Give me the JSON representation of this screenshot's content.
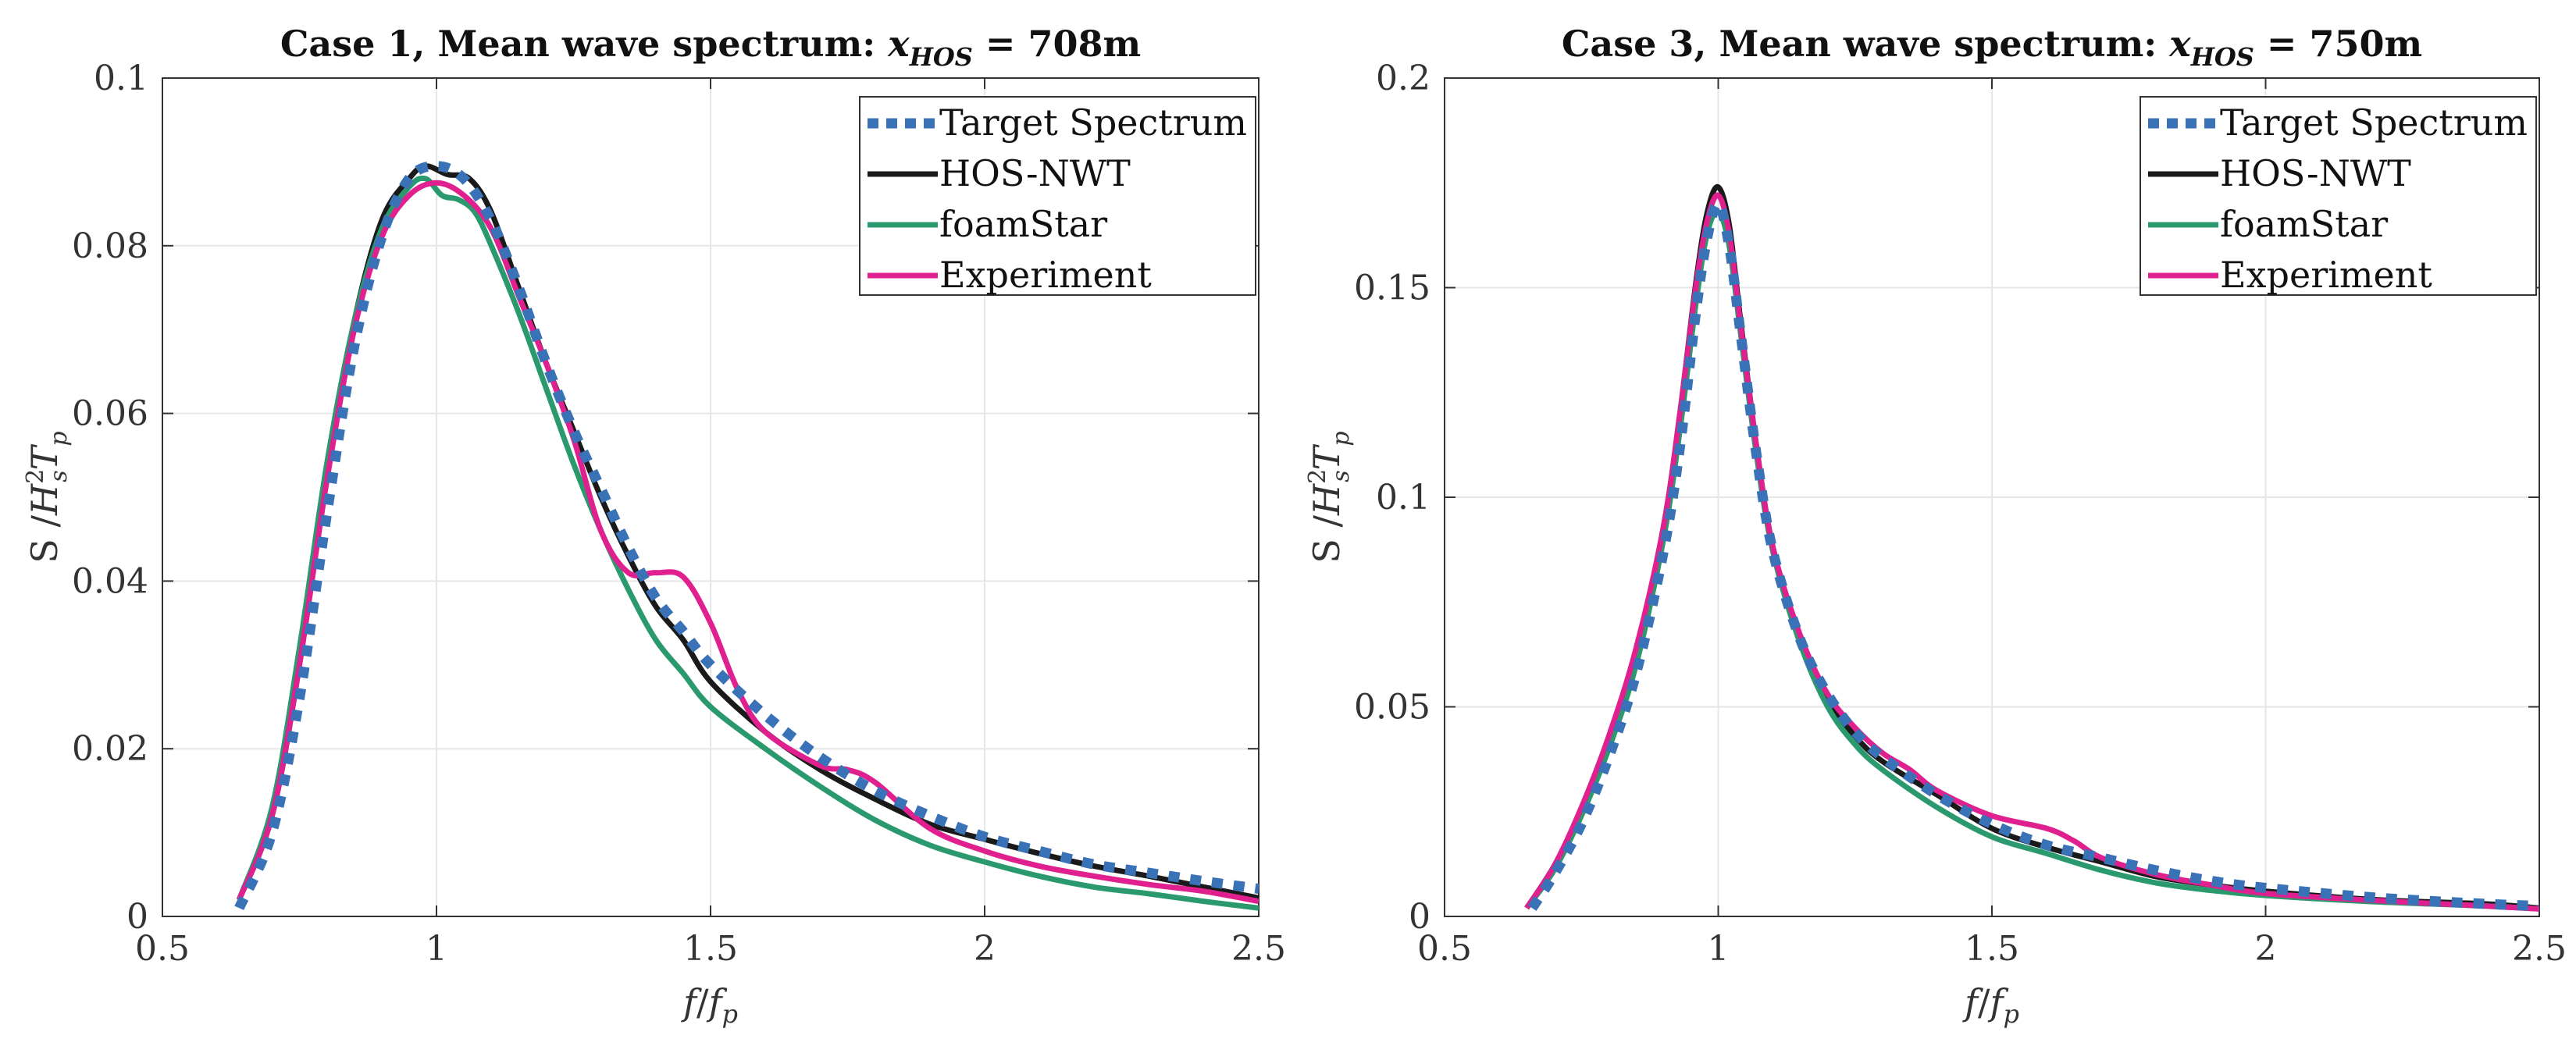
{
  "chart_data": [
    {
      "type": "line",
      "title": "Case 1, Mean wave spectrum: x_HOS = 708m",
      "title_main": "Case 1, Mean wave spectrum: ",
      "title_var": "x",
      "title_sub": "HOS",
      "title_value": " = 708m",
      "xlabel_num": "f",
      "xlabel_den": "f",
      "xlabel_sub": "p",
      "ylabel": "S /H²ₛTₚ",
      "ylabel_prefix": "S /",
      "ylabel_H": "H",
      "ylabel_sup": "2",
      "ylabel_s": "s",
      "ylabel_T": "T",
      "ylabel_p": "p",
      "xlim": [
        0.5,
        2.5
      ],
      "ylim": [
        0,
        0.1
      ],
      "xticks": [
        0.5,
        1,
        1.5,
        2,
        2.5
      ],
      "xtick_labels": [
        "0.5",
        "1",
        "1.5",
        "2",
        "2.5"
      ],
      "yticks": [
        0,
        0.02,
        0.04,
        0.06,
        0.08,
        0.1
      ],
      "ytick_labels": [
        "0",
        "0.02",
        "0.04",
        "0.06",
        "0.08",
        "0.1"
      ],
      "grid": true,
      "legend_position": "top-right",
      "series": [
        {
          "name": "Target Spectrum",
          "color": "#3a72b8",
          "style": "dotted",
          "x": [
            0.64,
            0.7,
            0.75,
            0.8,
            0.85,
            0.9,
            0.95,
            1.0,
            1.05,
            1.1,
            1.15,
            1.2,
            1.25,
            1.3,
            1.35,
            1.4,
            1.45,
            1.5,
            1.6,
            1.7,
            1.8,
            1.9,
            2.0,
            2.1,
            2.2,
            2.3,
            2.4,
            2.5
          ],
          "y": [
            0.001,
            0.01,
            0.026,
            0.048,
            0.068,
            0.081,
            0.088,
            0.0895,
            0.088,
            0.083,
            0.075,
            0.066,
            0.058,
            0.051,
            0.044,
            0.038,
            0.034,
            0.03,
            0.024,
            0.019,
            0.015,
            0.012,
            0.0095,
            0.0078,
            0.0062,
            0.0052,
            0.0042,
            0.0033
          ]
        },
        {
          "name": "HOS-NWT",
          "color": "#1a1a1a",
          "style": "solid",
          "x": [
            0.64,
            0.7,
            0.75,
            0.8,
            0.85,
            0.9,
            0.95,
            0.98,
            1.02,
            1.06,
            1.1,
            1.15,
            1.2,
            1.25,
            1.3,
            1.35,
            1.4,
            1.45,
            1.5,
            1.6,
            1.7,
            1.8,
            1.9,
            2.0,
            2.1,
            2.2,
            2.3,
            2.4,
            2.5
          ],
          "y": [
            0.002,
            0.012,
            0.03,
            0.053,
            0.071,
            0.083,
            0.088,
            0.0895,
            0.0885,
            0.088,
            0.084,
            0.075,
            0.066,
            0.058,
            0.05,
            0.043,
            0.037,
            0.033,
            0.028,
            0.022,
            0.0175,
            0.014,
            0.011,
            0.0092,
            0.0075,
            0.006,
            0.0048,
            0.0035,
            0.0022
          ]
        },
        {
          "name": "foamStar",
          "color": "#2a9a6e",
          "style": "solid",
          "x": [
            0.64,
            0.7,
            0.75,
            0.8,
            0.85,
            0.9,
            0.95,
            0.98,
            1.01,
            1.04,
            1.07,
            1.1,
            1.15,
            1.2,
            1.25,
            1.3,
            1.35,
            1.4,
            1.45,
            1.5,
            1.6,
            1.7,
            1.8,
            1.9,
            2.0,
            2.1,
            2.2,
            2.3,
            2.4,
            2.5
          ],
          "y": [
            0.002,
            0.013,
            0.032,
            0.054,
            0.071,
            0.082,
            0.087,
            0.088,
            0.086,
            0.0855,
            0.084,
            0.08,
            0.072,
            0.063,
            0.054,
            0.046,
            0.039,
            0.033,
            0.029,
            0.025,
            0.02,
            0.0155,
            0.0115,
            0.0085,
            0.0065,
            0.0048,
            0.0035,
            0.0027,
            0.0018,
            0.001
          ]
        },
        {
          "name": "Experiment",
          "color": "#e0208e",
          "style": "solid",
          "x": [
            0.64,
            0.7,
            0.75,
            0.8,
            0.85,
            0.9,
            0.95,
            1.0,
            1.05,
            1.1,
            1.15,
            1.2,
            1.25,
            1.3,
            1.35,
            1.4,
            1.45,
            1.5,
            1.55,
            1.6,
            1.7,
            1.75,
            1.8,
            1.9,
            2.0,
            2.1,
            2.2,
            2.3,
            2.4,
            2.5
          ],
          "y": [
            0.002,
            0.012,
            0.03,
            0.052,
            0.07,
            0.081,
            0.086,
            0.0875,
            0.086,
            0.082,
            0.074,
            0.066,
            0.057,
            0.046,
            0.041,
            0.041,
            0.0405,
            0.035,
            0.027,
            0.022,
            0.018,
            0.0175,
            0.016,
            0.0105,
            0.0078,
            0.006,
            0.0048,
            0.0038,
            0.003,
            0.0018
          ]
        }
      ]
    },
    {
      "type": "line",
      "title": "Case 3, Mean wave spectrum: x_HOS = 750m",
      "title_main": "Case 3, Mean wave spectrum: ",
      "title_var": "x",
      "title_sub": "HOS",
      "title_value": " = 750m",
      "xlabel_num": "f",
      "xlabel_den": "f",
      "xlabel_sub": "p",
      "ylabel": "S /H²ₛTₚ",
      "ylabel_prefix": "S /",
      "ylabel_H": "H",
      "ylabel_sup": "2",
      "ylabel_s": "s",
      "ylabel_T": "T",
      "ylabel_p": "p",
      "xlim": [
        0.5,
        2.5
      ],
      "ylim": [
        0,
        0.2
      ],
      "xticks": [
        0.5,
        1,
        1.5,
        2,
        2.5
      ],
      "xtick_labels": [
        "0.5",
        "1",
        "1.5",
        "2",
        "2.5"
      ],
      "yticks": [
        0,
        0.05,
        0.1,
        0.15,
        0.2
      ],
      "ytick_labels": [
        "0",
        "0.05",
        "0.1",
        "0.15",
        "0.2"
      ],
      "grid": true,
      "legend_position": "top-right",
      "series": [
        {
          "name": "Target Spectrum",
          "color": "#3a72b8",
          "style": "dotted",
          "x": [
            0.66,
            0.7,
            0.75,
            0.8,
            0.85,
            0.9,
            0.93,
            0.96,
            0.98,
            1.0,
            1.02,
            1.04,
            1.07,
            1.1,
            1.15,
            1.2,
            1.25,
            1.3,
            1.4,
            1.5,
            1.6,
            1.7,
            1.8,
            1.9,
            2.0,
            2.2,
            2.4,
            2.5
          ],
          "y": [
            0.002,
            0.01,
            0.022,
            0.038,
            0.058,
            0.087,
            0.112,
            0.145,
            0.162,
            0.17,
            0.16,
            0.14,
            0.11,
            0.087,
            0.066,
            0.053,
            0.044,
            0.038,
            0.029,
            0.022,
            0.017,
            0.014,
            0.011,
            0.0085,
            0.0068,
            0.0045,
            0.003,
            0.0025
          ]
        },
        {
          "name": "HOS-NWT",
          "color": "#1a1a1a",
          "style": "solid",
          "x": [
            0.65,
            0.7,
            0.75,
            0.8,
            0.85,
            0.9,
            0.93,
            0.96,
            0.98,
            1.0,
            1.02,
            1.04,
            1.07,
            1.1,
            1.15,
            1.2,
            1.25,
            1.3,
            1.4,
            1.5,
            1.6,
            1.7,
            1.8,
            1.9,
            2.0,
            2.2,
            2.4,
            2.5
          ],
          "y": [
            0.002,
            0.012,
            0.025,
            0.042,
            0.063,
            0.093,
            0.12,
            0.152,
            0.168,
            0.174,
            0.165,
            0.143,
            0.112,
            0.088,
            0.066,
            0.052,
            0.043,
            0.037,
            0.029,
            0.021,
            0.0165,
            0.013,
            0.0095,
            0.0075,
            0.006,
            0.004,
            0.003,
            0.002
          ]
        },
        {
          "name": "foamStar",
          "color": "#2a9a6e",
          "style": "solid",
          "x": [
            0.65,
            0.7,
            0.75,
            0.8,
            0.85,
            0.9,
            0.93,
            0.96,
            0.98,
            1.0,
            1.02,
            1.04,
            1.07,
            1.1,
            1.15,
            1.2,
            1.25,
            1.3,
            1.4,
            1.5,
            1.6,
            1.7,
            1.8,
            1.9,
            2.0,
            2.2,
            2.4,
            2.5
          ],
          "y": [
            0.002,
            0.011,
            0.024,
            0.04,
            0.06,
            0.09,
            0.116,
            0.147,
            0.163,
            0.168,
            0.16,
            0.14,
            0.11,
            0.087,
            0.065,
            0.05,
            0.041,
            0.035,
            0.026,
            0.019,
            0.015,
            0.011,
            0.008,
            0.0062,
            0.005,
            0.0035,
            0.0025,
            0.0018
          ]
        },
        {
          "name": "Experiment",
          "color": "#e0208e",
          "style": "solid",
          "x": [
            0.65,
            0.7,
            0.75,
            0.8,
            0.85,
            0.9,
            0.93,
            0.96,
            0.98,
            1.0,
            1.02,
            1.04,
            1.07,
            1.1,
            1.15,
            1.2,
            1.25,
            1.3,
            1.35,
            1.4,
            1.5,
            1.6,
            1.65,
            1.7,
            1.8,
            1.9,
            2.0,
            2.2,
            2.4,
            2.5
          ],
          "y": [
            0.002,
            0.012,
            0.026,
            0.043,
            0.064,
            0.093,
            0.12,
            0.151,
            0.166,
            0.172,
            0.163,
            0.142,
            0.112,
            0.088,
            0.067,
            0.053,
            0.045,
            0.039,
            0.035,
            0.03,
            0.024,
            0.021,
            0.018,
            0.014,
            0.01,
            0.0075,
            0.0055,
            0.0038,
            0.0025,
            0.0018
          ]
        }
      ]
    }
  ]
}
